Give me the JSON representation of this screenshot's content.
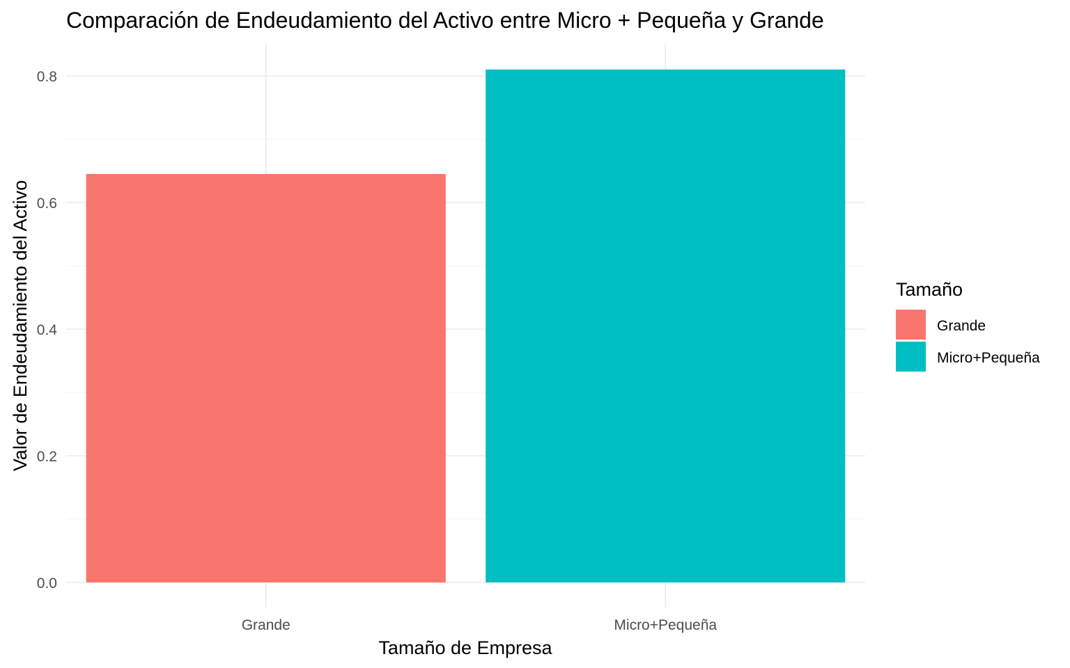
{
  "chart_data": {
    "type": "bar",
    "title": "Comparación de Endeudamiento del Activo entre Micro + Pequeña y Grande",
    "xlabel": "Tamaño de Empresa",
    "ylabel": "Valor de Endeudamiento del Activo",
    "categories": [
      "Grande",
      "Micro+Pequeña"
    ],
    "values": [
      0.645,
      0.81
    ],
    "colors": [
      "#F8766D",
      "#00BFC4"
    ],
    "ylim": [
      -0.07,
      0.84
    ],
    "yticks": [
      0.0,
      0.2,
      0.4,
      0.6,
      0.8
    ],
    "ytick_labels": [
      "0.0",
      "0.2",
      "0.4",
      "0.6",
      "0.8"
    ],
    "grid": true,
    "legend": {
      "title": "Tamaño",
      "placement": "right",
      "entries": [
        "Grande",
        "Micro+Pequeña"
      ]
    }
  }
}
